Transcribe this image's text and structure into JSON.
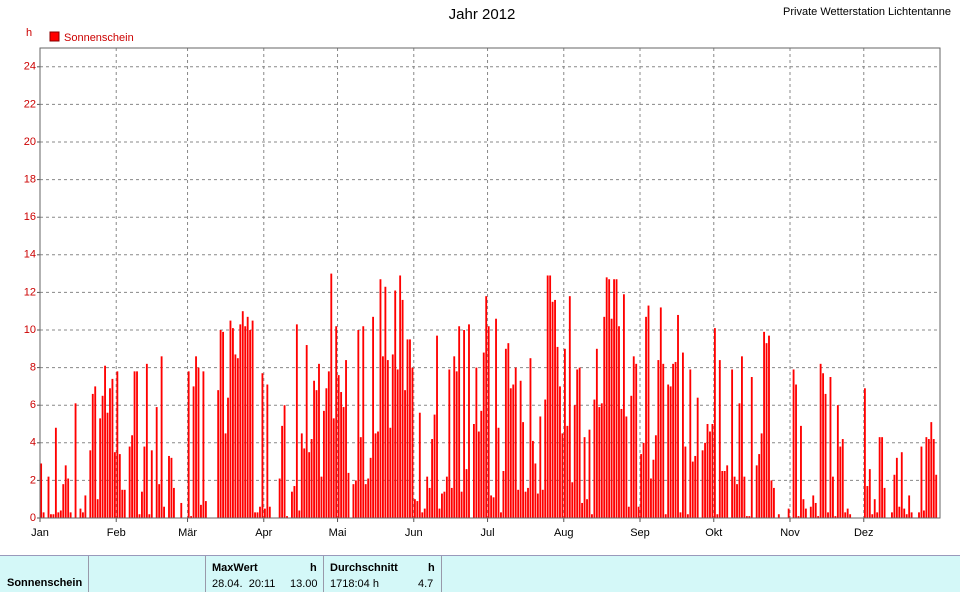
{
  "chart_data": {
    "type": "bar",
    "title": "Jahr 2012",
    "subtitle": "Private Wetterstation Lichtentanne",
    "y_label": "h",
    "categories": [
      "Jan",
      null,
      null,
      null,
      null,
      null,
      null,
      null,
      null,
      null,
      null,
      null,
      null,
      null,
      null,
      null,
      null,
      null,
      null,
      null,
      null,
      null,
      null,
      null,
      null,
      null,
      null,
      null,
      null,
      null,
      null,
      "Feb",
      null,
      null,
      null,
      null,
      null,
      null,
      null,
      null,
      null,
      null,
      null,
      null,
      null,
      null,
      null,
      null,
      null,
      null,
      null,
      null,
      null,
      null,
      null,
      null,
      null,
      null,
      null,
      null,
      "Mär",
      null,
      null,
      null,
      null,
      null,
      null,
      null,
      null,
      null,
      null,
      null,
      null,
      null,
      null,
      null,
      null,
      null,
      null,
      null,
      null,
      null,
      null,
      null,
      null,
      null,
      null,
      null,
      null,
      null,
      null,
      "Apr",
      null,
      null,
      null,
      null,
      null,
      null,
      null,
      null,
      null,
      null,
      null,
      null,
      null,
      null,
      null,
      null,
      null,
      null,
      null,
      null,
      null,
      null,
      null,
      null,
      null,
      null,
      null,
      null,
      null,
      "Mai",
      null,
      null,
      null,
      null,
      null,
      null,
      null,
      null,
      null,
      null,
      null,
      null,
      null,
      null,
      null,
      null,
      null,
      null,
      null,
      null,
      null,
      null,
      null,
      null,
      null,
      null,
      null,
      null,
      null,
      null,
      "Jun",
      null,
      null,
      null,
      null,
      null,
      null,
      null,
      null,
      null,
      null,
      null,
      null,
      null,
      null,
      null,
      null,
      null,
      null,
      null,
      null,
      null,
      null,
      null,
      null,
      null,
      null,
      null,
      null,
      null,
      "Jul",
      null,
      null,
      null,
      null,
      null,
      null,
      null,
      null,
      null,
      null,
      null,
      null,
      null,
      null,
      null,
      null,
      null,
      null,
      null,
      null,
      null,
      null,
      null,
      null,
      null,
      null,
      null,
      null,
      null,
      null,
      "Aug",
      null,
      null,
      null,
      null,
      null,
      null,
      null,
      null,
      null,
      null,
      null,
      null,
      null,
      null,
      null,
      null,
      null,
      null,
      null,
      null,
      null,
      null,
      null,
      null,
      null,
      null,
      null,
      null,
      null,
      null,
      "Sep",
      null,
      null,
      null,
      null,
      null,
      null,
      null,
      null,
      null,
      null,
      null,
      null,
      null,
      null,
      null,
      null,
      null,
      null,
      null,
      null,
      null,
      null,
      null,
      null,
      null,
      null,
      null,
      null,
      null,
      "Okt",
      null,
      null,
      null,
      null,
      null,
      null,
      null,
      null,
      null,
      null,
      null,
      null,
      null,
      null,
      null,
      null,
      null,
      null,
      null,
      null,
      null,
      null,
      null,
      null,
      null,
      null,
      null,
      null,
      null,
      null,
      "Nov",
      null,
      null,
      null,
      null,
      null,
      null,
      null,
      null,
      null,
      null,
      null,
      null,
      null,
      null,
      null,
      null,
      null,
      null,
      null,
      null,
      null,
      null,
      null,
      null,
      null,
      null,
      null,
      null,
      null,
      "Dez",
      null,
      null,
      null,
      null,
      null,
      null,
      null,
      null,
      null,
      null,
      null,
      null,
      null,
      null,
      null,
      null,
      null,
      null,
      null,
      null,
      null,
      null,
      null,
      null,
      null,
      null,
      null,
      null,
      null,
      null
    ],
    "series": [
      {
        "name": "Sonnenschein",
        "color": "#ff0000",
        "values": [
          2.9,
          0.3,
          0,
          2.2,
          0.2,
          0.2,
          4.8,
          0.3,
          0.4,
          1.8,
          2.8,
          2.1,
          0.3,
          0,
          6.1,
          0,
          0.5,
          0.3,
          1.2,
          0,
          3.6,
          6.6,
          7.0,
          1.0,
          5.3,
          6.5,
          8.1,
          5.6,
          6.9,
          7.4,
          3.5,
          7.8,
          3.4,
          1.5,
          1.5,
          0,
          3.8,
          4.4,
          7.8,
          7.8,
          0.2,
          1.4,
          3.8,
          8.2,
          0.2,
          3.6,
          0,
          5.9,
          1.8,
          8.6,
          0.6,
          0,
          3.3,
          3.2,
          1.6,
          0,
          0,
          0.8,
          0,
          0,
          7.8,
          0.1,
          7.0,
          8.6,
          8.0,
          0.7,
          7.8,
          0.9,
          0,
          0,
          0,
          0,
          6.8,
          10.0,
          9.9,
          4.5,
          6.4,
          10.5,
          10.1,
          8.7,
          8.5,
          10.3,
          11.0,
          10.2,
          10.7,
          10.0,
          10.5,
          0.3,
          0.3,
          0.6,
          7.7,
          0.5,
          7.1,
          0.6,
          0,
          0,
          0,
          2.1,
          4.9,
          6.0,
          0.1,
          0,
          1.4,
          1.7,
          10.3,
          0.4,
          4.5,
          3.7,
          9.2,
          3.5,
          4.2,
          7.3,
          6.8,
          8.2,
          2.2,
          5.7,
          6.9,
          7.8,
          13.0,
          5.3,
          10.2,
          7.6,
          6.7,
          5.9,
          8.4,
          2.4,
          0,
          1.8,
          2.0,
          10.0,
          4.3,
          10.2,
          1.8,
          2.1,
          3.2,
          10.7,
          4.5,
          4.6,
          12.7,
          8.6,
          12.3,
          8.4,
          4.8,
          8.7,
          12.1,
          7.9,
          12.9,
          11.6,
          6.8,
          9.5,
          9.5,
          8.0,
          1.0,
          0.9,
          5.6,
          0.3,
          0.5,
          2.2,
          1.6,
          4.2,
          5.5,
          9.7,
          0.5,
          1.3,
          1.4,
          2.2,
          7.9,
          1.6,
          8.6,
          7.8,
          10.2,
          1.4,
          10.0,
          2.6,
          10.3,
          0,
          5.0,
          8.0,
          4.6,
          5.7,
          8.8,
          11.8,
          10.2,
          1.2,
          1.1,
          10.6,
          4.8,
          0.3,
          2.5,
          9.0,
          9.3,
          6.9,
          7.1,
          8.0,
          1.5,
          7.3,
          5.1,
          1.4,
          1.6,
          8.5,
          4.1,
          2.9,
          1.3,
          5.4,
          1.5,
          6.3,
          12.9,
          12.9,
          11.5,
          11.6,
          9.1,
          7.0,
          4.5,
          9.0,
          4.9,
          11.8,
          1.9,
          6.0,
          7.9,
          8.0,
          0.8,
          4.3,
          1.0,
          4.7,
          0.2,
          6.3,
          9.0,
          5.9,
          6.1,
          10.7,
          12.8,
          12.7,
          10.6,
          12.7,
          12.7,
          10.2,
          5.8,
          11.9,
          5.4,
          0.6,
          6.5,
          8.6,
          8.2,
          0.6,
          3.4,
          4.0,
          10.7,
          11.3,
          2.1,
          3.1,
          4.4,
          8.4,
          11.2,
          8.2,
          0.2,
          7.1,
          7.0,
          8.2,
          8.3,
          10.8,
          0.3,
          8.8,
          3.8,
          0.2,
          7.9,
          3.0,
          3.3,
          6.4,
          0,
          3.6,
          4.0,
          5.0,
          4.6,
          5.0,
          10.1,
          0.2,
          8.4,
          2.5,
          2.5,
          2.8,
          0,
          7.9,
          2.2,
          1.8,
          6.1,
          8.6,
          2.2,
          0.1,
          0.1,
          7.5,
          0,
          2.8,
          3.4,
          4.5,
          9.9,
          9.3,
          9.7,
          2.0,
          1.6,
          0,
          0.2,
          0,
          0,
          0,
          0.5,
          0,
          7.9,
          7.1,
          0.1,
          4.9,
          1.0,
          0.5,
          0,
          0.6,
          1.2,
          0.8,
          0.1,
          8.2,
          7.7,
          6.6,
          0.3,
          7.5,
          2.2,
          0.1,
          6.0,
          3.8,
          4.2,
          0.3,
          0.5,
          0.2,
          0,
          0,
          0,
          0,
          0,
          6.9,
          1.7,
          2.6,
          0.2,
          1.0,
          0.3,
          4.3,
          4.3,
          1.6,
          0,
          0,
          0.3,
          2.3,
          3.2,
          0.6,
          3.5,
          0.5,
          0.2,
          1.2,
          0.3,
          0,
          0,
          0.3,
          3.8,
          0.4,
          4.3,
          4.2,
          5.1,
          4.2,
          2.3,
          0
        ]
      }
    ],
    "ylim": [
      0,
      25
    ],
    "yticks": [
      0,
      2,
      4,
      6,
      8,
      10,
      12,
      14,
      16,
      18,
      20,
      22,
      24
    ],
    "grid": true,
    "legend": "top-left"
  },
  "summary": {
    "row_label": "Sonnenschein",
    "max_header": "MaxWert",
    "max_unit": "h",
    "max_time": "28.04.  20:11",
    "max_value": "13.00",
    "avg_header": "Durchschnitt",
    "avg_unit": "h",
    "avg_total": "1718:04 h",
    "avg_value": "4.7"
  }
}
